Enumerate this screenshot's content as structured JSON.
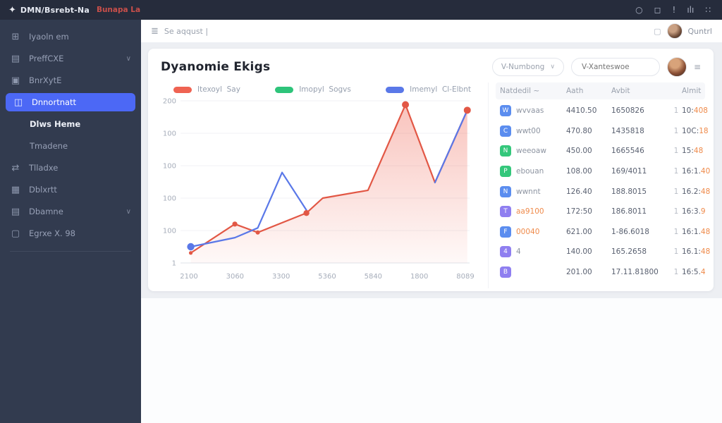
{
  "colors": {
    "accent_blue": "#4c68f5",
    "series_red": "#e8604c",
    "series_blue": "#5a78e8",
    "series_green": "#2ec47a",
    "orange": "#ef8a4a",
    "sidebar_bg": "#323b4f",
    "topbar_bg": "#262c3c"
  },
  "topbar": {
    "logo_glyph": "✦",
    "logo_text": "DMN/Bsrebt-Na",
    "logo_accent": "Bunapa La",
    "icons": [
      {
        "name": "notification-circle-icon",
        "glyph": "○"
      },
      {
        "name": "lock-icon",
        "glyph": "◻"
      },
      {
        "name": "alert-icon",
        "glyph": "!"
      },
      {
        "name": "stats-icon",
        "glyph": "ılı"
      },
      {
        "name": "apps-grid-icon",
        "glyph": "∷"
      }
    ]
  },
  "sidebar": {
    "items": [
      {
        "label": "Iyaoln em",
        "icon": "dashboard-icon"
      },
      {
        "label": "PreffCXE",
        "icon": "printer-icon",
        "chevron": true
      },
      {
        "label": "BnrXytE",
        "icon": "copy-icon"
      },
      {
        "label": "Dnnortnatt",
        "icon": "image-icon",
        "active": true
      },
      {
        "label": "Dlws Heme",
        "sub": true,
        "bold": true
      },
      {
        "label": "Tmadene",
        "sub": true
      },
      {
        "label": "Tlladxe",
        "icon": "share-icon"
      },
      {
        "label": "Dblxrtt",
        "icon": "calendar-icon"
      },
      {
        "label": "Dbamne",
        "icon": "calendar2-icon",
        "chevron": true
      },
      {
        "label": "Egrxe X. 98",
        "icon": "bag-icon"
      }
    ]
  },
  "header": {
    "hamburger_glyph": "≣",
    "breadcrumb": "Se aqqust  |",
    "fullscreen_glyph": "▢",
    "user": "Quntrl"
  },
  "page": {
    "title": "Dyanomie Ekigs"
  },
  "filters": {
    "select_value": "V-Numbong",
    "input_placeholder": "V-Xanteswoe",
    "menu_glyph": "≡",
    "chevron": "∨"
  },
  "legend": [
    {
      "label": "Itexoyl  Say",
      "color": "#ef6352"
    },
    {
      "label": "Imopyl  Sogvs",
      "color": "#2ec47a"
    },
    {
      "label": "Imemyl  Cl-Elbnt",
      "color": "#5a78e8"
    }
  ],
  "chart_data": {
    "type": "line",
    "title": "Dyanomie Ekigs",
    "xlabel": "",
    "ylabel": "",
    "x_tick_labels": [
      "2100",
      "3060",
      "3300",
      "5360",
      "5840",
      "1800",
      "8089"
    ],
    "y_tick_labels": [
      "200",
      "100",
      "100",
      "100",
      "100",
      "1"
    ],
    "y_range": [
      0,
      500
    ],
    "grid": true,
    "legend_position": "top",
    "series": [
      {
        "name": "Itexoyl Say",
        "color": "#e25745",
        "area": true,
        "points": [
          {
            "x": 0.026,
            "v": 31
          },
          {
            "x": 0.18,
            "v": 120
          },
          {
            "x": 0.26,
            "v": 94
          },
          {
            "x": 0.43,
            "v": 154
          },
          {
            "x": 0.487,
            "v": 200
          },
          {
            "x": 0.645,
            "v": 224
          },
          {
            "x": 0.776,
            "v": 488
          },
          {
            "x": 0.879,
            "v": 248
          },
          {
            "x": 0.992,
            "v": 471
          }
        ],
        "dots": [
          {
            "i": 0,
            "r": 2.6
          },
          {
            "i": 1,
            "r": 3.6
          },
          {
            "i": 2,
            "r": 3
          },
          {
            "i": 3,
            "r": 4.2
          },
          {
            "i": 6,
            "r": 5
          },
          {
            "i": 8,
            "r": 5
          }
        ]
      },
      {
        "name": "Imemyl Cl-Elbnt",
        "color": "#5a78e8",
        "segments": [
          [
            {
              "x": 0.026,
              "v": 50
            },
            {
              "x": 0.18,
              "v": 78
            },
            {
              "x": 0.26,
              "v": 108
            },
            {
              "x": 0.345,
              "v": 279
            },
            {
              "x": 0.43,
              "v": 163
            }
          ],
          [
            {
              "x": 0.879,
              "v": 248
            },
            {
              "x": 0.992,
              "v": 471
            }
          ]
        ],
        "dots": [
          {
            "seg": 0,
            "i": 0,
            "r": 5.2
          }
        ]
      },
      {
        "name": "Imopyl Sogvs",
        "color": "#2ec47a",
        "points": []
      }
    ]
  },
  "table": {
    "headers": {
      "name": "Natdedil",
      "name_sort": "~",
      "v1": "Aath",
      "v2": "Avbit",
      "sep": "",
      "v3": "Almit",
      "action_glyph": "⊞"
    },
    "row_action_glyph": "▦",
    "rows": [
      {
        "chip_bg": "#5b8def",
        "chip_glyph": "W",
        "name": "wvvaas",
        "name_orange": false,
        "v1": "4410.50",
        "v2": "1650826",
        "sep": "1",
        "v3": "10:",
        "v3_hot": "408"
      },
      {
        "chip_bg": "#5b8def",
        "chip_glyph": "C",
        "name": "wwt00",
        "name_orange": false,
        "v1": "470.80",
        "v2": "1435818",
        "sep": "1",
        "v3": "10C:",
        "v3_hot": "18"
      },
      {
        "chip_bg": "#34c77b",
        "chip_glyph": "N",
        "name": "weeoaw",
        "name_orange": false,
        "v1": "450.00",
        "v2": "1665546",
        "sep": "1",
        "v3": "15:",
        "v3_hot": "48"
      },
      {
        "chip_bg": "#34c77b",
        "chip_glyph": "P",
        "name": "ebouan",
        "name_orange": false,
        "v1": "108.00",
        "v2": "169/4011",
        "sep": "1",
        "v3": "16:1.",
        "v3_hot": "40"
      },
      {
        "chip_bg": "#5b8def",
        "chip_glyph": "N",
        "name": "wwnnt",
        "name_orange": false,
        "v1": "126.40",
        "v2": "188.8015",
        "sep": "1",
        "v3": "16.2:",
        "v3_hot": "48"
      },
      {
        "chip_bg": "#8f7ff0",
        "chip_glyph": "T",
        "name": "aa9100",
        "name_orange": true,
        "v1": "172:50",
        "v2": "186.8011",
        "sep": "1",
        "v3": "16:3.",
        "v3_hot": "9"
      },
      {
        "chip_bg": "#5b8def",
        "chip_glyph": "F",
        "name": "00040",
        "name_orange": true,
        "v1": "621.00",
        "v2": "1-86.6018",
        "sep": "1",
        "v3": "16:1.",
        "v3_hot": "48"
      },
      {
        "chip_bg": "#8f7ff0",
        "chip_glyph": "4",
        "name": "4",
        "name_orange": false,
        "v1": "140.00",
        "v2": "165.2658",
        "sep": "1",
        "v3": "16.1:",
        "v3_hot": "48"
      },
      {
        "chip_bg": "#8f7ff0",
        "chip_glyph": "B",
        "name": "",
        "name_orange": false,
        "v1": "201.00",
        "v2": "17.11.81800",
        "sep": "1",
        "v3": "16:5.",
        "v3_hot": "4"
      }
    ]
  }
}
